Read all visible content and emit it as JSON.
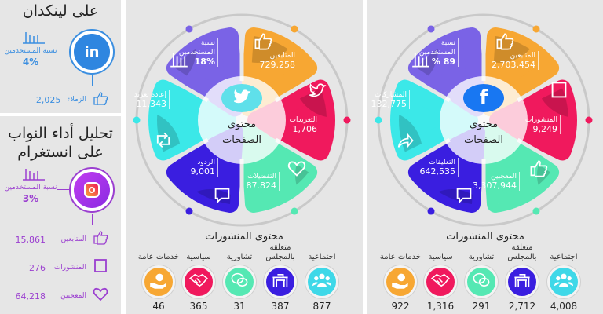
{
  "linkedin": {
    "title_line": "على لينكدان",
    "color": "#3a8ee0",
    "users_label": "نسبة المستخدمين",
    "users_value": "4%",
    "stats": [
      {
        "label": "الزملاء",
        "value": "2,025",
        "icon": "thumbs-up"
      }
    ]
  },
  "instagram": {
    "title_lines": [
      "تحليل أداء النواب",
      "على انستغرام"
    ],
    "color": "#9b3fd0",
    "users_label": "نسبة المستخدمين",
    "users_value": "3%",
    "stats": [
      {
        "label": "المتابعين",
        "value": "15,861",
        "icon": "thumbs-up"
      },
      {
        "label": "المنشورات",
        "value": "276",
        "icon": "square"
      },
      {
        "label": "المعجبين",
        "value": "64,218",
        "icon": "heart"
      }
    ]
  },
  "twitter": {
    "center_lines": [
      "محتوى",
      "الصفحات"
    ],
    "logo": "twitter-bird",
    "petals": [
      {
        "label": "المتابعين",
        "value": "729.258",
        "icon": "thumbs-up",
        "color": "#f7a733"
      },
      {
        "label": "التغريدات",
        "value": "1,706",
        "icon": "twitter",
        "color": "#f0195d"
      },
      {
        "label": "التفضيلات",
        "value": "87.824",
        "icon": "heart",
        "color": "#55e8b3"
      },
      {
        "label": "الردود",
        "value": "9,001",
        "icon": "speech-bubble",
        "color": "#3a1ee0"
      },
      {
        "label": "إعادة تغريد",
        "value": "11.343",
        "icon": "retweet",
        "color": "#3be8e8"
      },
      {
        "label": "نسبة المستخدمين",
        "value": "18%",
        "icon": "bar-chart",
        "color": "#7a63e6"
      }
    ],
    "posts_title": "محتوى المنشورات",
    "categories": [
      {
        "label": "اجتماعية",
        "value": "877",
        "icon": "people",
        "color": "#3fd8e8"
      },
      {
        "label": "متعلقة بالمجلس",
        "value": "387",
        "icon": "parliament",
        "color": "#3a1ee0"
      },
      {
        "label": "تشاورية",
        "value": "31",
        "icon": "chat",
        "color": "#55e8b3"
      },
      {
        "label": "سياسية",
        "value": "365",
        "icon": "handshake",
        "color": "#f0195d"
      },
      {
        "label": "خدمات عامة",
        "value": "46",
        "icon": "gear-hand",
        "color": "#f7a733"
      }
    ]
  },
  "facebook": {
    "center_lines": [
      "محتوى",
      "الصفحات"
    ],
    "logo": "facebook-f",
    "petals": [
      {
        "label": "المتابعين",
        "value": "2,703,454",
        "icon": "thumbs-up",
        "color": "#f7a733"
      },
      {
        "label": "المنشورات",
        "value": "9,249",
        "icon": "square",
        "color": "#f0195d"
      },
      {
        "label": "المعجبين",
        "value": "3,307,944",
        "icon": "thumbs-up",
        "color": "#55e8b3"
      },
      {
        "label": "التعليقات",
        "value": "642,535",
        "icon": "speech-bubble",
        "color": "#3a1ee0"
      },
      {
        "label": "المشاركات",
        "value": "132,775",
        "icon": "share",
        "color": "#3be8e8"
      },
      {
        "label": "نسبة المستخدمين",
        "value": "89 %",
        "icon": "bar-chart",
        "color": "#7a63e6"
      }
    ],
    "posts_title": "محتوى المنشورات",
    "categories": [
      {
        "label": "اجتماعية",
        "value": "4,008",
        "icon": "people",
        "color": "#3fd8e8"
      },
      {
        "label": "متعلقة بالمجلس",
        "value": "2,712",
        "icon": "parliament",
        "color": "#3a1ee0"
      },
      {
        "label": "تشاورية",
        "value": "291",
        "icon": "chat",
        "color": "#55e8b3"
      },
      {
        "label": "سياسية",
        "value": "1,316",
        "icon": "handshake",
        "color": "#f0195d"
      },
      {
        "label": "خدمات عامة",
        "value": "922",
        "icon": "gear-hand",
        "color": "#f7a733"
      }
    ]
  }
}
